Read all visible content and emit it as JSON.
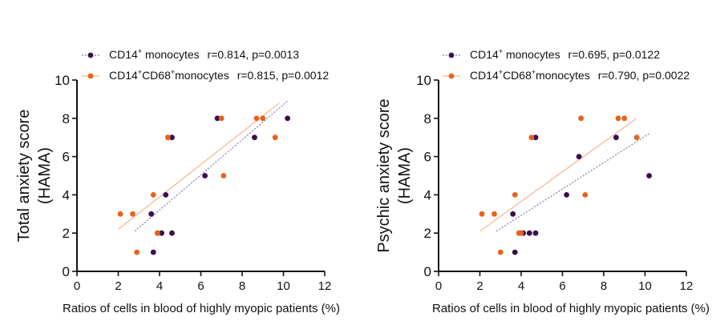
{
  "chart_data": [
    {
      "type": "scatter",
      "xlabel": "Ratios of cells in blood of highly myopic patients (%)",
      "ylabel_line1": "Total anxiety score",
      "ylabel_line2": "(HAMA)",
      "xlim": [
        0,
        12
      ],
      "ylim": [
        0,
        10
      ],
      "xticks": [
        "0",
        "2",
        "4",
        "6",
        "8",
        "10",
        "12"
      ],
      "yticks": [
        "0",
        "2",
        "4",
        "6",
        "8",
        "10"
      ],
      "series": [
        {
          "name": "CD14+ monocytes",
          "label_a": "CD14",
          "label_sup1": "+",
          "label_b": " monocytes",
          "stats": "r=0.814, p=0.0013",
          "color": "#3b0d4f",
          "line_color": "#8878b0",
          "fit": [
            [
              2.8,
              2.1
            ],
            [
              10.2,
              8.9
            ]
          ],
          "points": [
            [
              3.7,
              1
            ],
            [
              3.9,
              2
            ],
            [
              4.1,
              2
            ],
            [
              4.6,
              2
            ],
            [
              3.6,
              3
            ],
            [
              4.3,
              4
            ],
            [
              6.2,
              5
            ],
            [
              8.6,
              7
            ],
            [
              4.6,
              7
            ],
            [
              6.8,
              8
            ],
            [
              10.2,
              8
            ]
          ]
        },
        {
          "name": "CD14+CD68+monocytes",
          "label_a": "CD14",
          "label_sup1": "+",
          "label_b": "CD68",
          "label_sup2": "+",
          "label_c": "monocytes",
          "stats": "r=0.815, p=0.0012",
          "color": "#e8621a",
          "line_color": "#f4b48c",
          "fit": [
            [
              2.0,
              2.2
            ],
            [
              9.8,
              8.8
            ]
          ],
          "points": [
            [
              2.1,
              3
            ],
            [
              2.7,
              3
            ],
            [
              2.9,
              1
            ],
            [
              3.7,
              4
            ],
            [
              3.9,
              2
            ],
            [
              4.4,
              7
            ],
            [
              7.0,
              8
            ],
            [
              7.1,
              5
            ],
            [
              8.7,
              8
            ],
            [
              9.0,
              8
            ],
            [
              9.6,
              7
            ]
          ]
        }
      ]
    },
    {
      "type": "scatter",
      "xlabel": "Ratios of cells in blood of highly myopic patients (%)",
      "ylabel_line1": "Psychic anxiety score",
      "ylabel_line2": "(HAMA)",
      "xlim": [
        0,
        12
      ],
      "ylim": [
        0,
        10
      ],
      "xticks": [
        "0",
        "2",
        "4",
        "6",
        "8",
        "10",
        "12"
      ],
      "yticks": [
        "0",
        "2",
        "4",
        "6",
        "8",
        "10"
      ],
      "series": [
        {
          "name": "CD14+ monocytes",
          "label_a": "CD14",
          "label_sup1": "+",
          "label_b": " monocytes",
          "stats": "r=0.695, p=0.0122",
          "color": "#3b0d4f",
          "line_color": "#8878b0",
          "fit": [
            [
              2.8,
              2.1
            ],
            [
              10.2,
              7.2
            ]
          ],
          "points": [
            [
              3.7,
              1
            ],
            [
              3.9,
              2
            ],
            [
              4.1,
              2
            ],
            [
              4.4,
              2
            ],
            [
              4.7,
              2
            ],
            [
              3.6,
              3
            ],
            [
              6.2,
              4
            ],
            [
              6.8,
              6
            ],
            [
              8.6,
              7
            ],
            [
              4.7,
              7
            ],
            [
              10.2,
              5
            ]
          ]
        },
        {
          "name": "CD14+CD68+monocytes",
          "label_a": "CD14",
          "label_sup1": "+",
          "label_b": "CD68",
          "label_sup2": "+",
          "label_c": "monocytes",
          "stats": "r=0.790, p=0.0022",
          "color": "#e8621a",
          "line_color": "#f4b48c",
          "fit": [
            [
              2.0,
              2.1
            ],
            [
              9.6,
              8.0
            ]
          ],
          "points": [
            [
              2.1,
              3
            ],
            [
              2.7,
              3
            ],
            [
              3.0,
              1
            ],
            [
              3.7,
              4
            ],
            [
              3.9,
              2
            ],
            [
              4.0,
              2
            ],
            [
              4.5,
              7
            ],
            [
              6.9,
              8
            ],
            [
              7.1,
              4
            ],
            [
              8.7,
              8
            ],
            [
              9.0,
              8
            ],
            [
              9.6,
              7
            ]
          ]
        }
      ]
    }
  ]
}
